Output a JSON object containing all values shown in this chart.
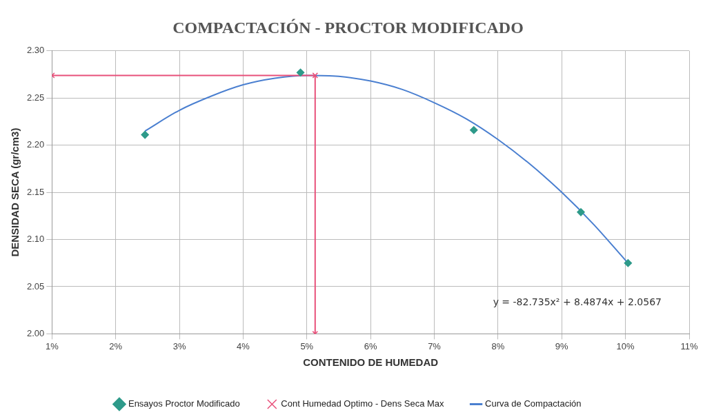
{
  "chart_data": {
    "type": "scatter",
    "title": "COMPACTACIÓN - PROCTOR MODIFICADO",
    "xlabel": "CONTENIDO DE HUMEDAD",
    "ylabel": "DENSIDAD SECA (gr/cm3)",
    "xlim": [
      0.01,
      0.11
    ],
    "xticks": [
      {
        "value": 0.01,
        "label": "1%"
      },
      {
        "value": 0.02,
        "label": "2%"
      },
      {
        "value": 0.03,
        "label": "3%"
      },
      {
        "value": 0.04,
        "label": "4%"
      },
      {
        "value": 0.05,
        "label": "5%"
      },
      {
        "value": 0.06,
        "label": "6%"
      },
      {
        "value": 0.07,
        "label": "7%"
      },
      {
        "value": 0.08,
        "label": "8%"
      },
      {
        "value": 0.09,
        "label": "9%"
      },
      {
        "value": 0.1,
        "label": "10%"
      },
      {
        "value": 0.11,
        "label": "11%"
      }
    ],
    "ylim": [
      2.0,
      2.3
    ],
    "yticks": [
      {
        "value": 2.0,
        "label": "2.00"
      },
      {
        "value": 2.05,
        "label": "2.05"
      },
      {
        "value": 2.1,
        "label": "2.10"
      },
      {
        "value": 2.15,
        "label": "2.15"
      },
      {
        "value": 2.2,
        "label": "2.20"
      },
      {
        "value": 2.25,
        "label": "2.25"
      },
      {
        "value": 2.3,
        "label": "2.30"
      }
    ],
    "grid": true,
    "legend": "bottom",
    "series": [
      {
        "name": "Ensayos Proctor Modificado",
        "marker": "diamond",
        "color": "#2e9a8a",
        "x": [
          0.0246,
          0.049,
          0.0762,
          0.093,
          0.1004
        ],
        "values": [
          2.211,
          2.277,
          2.216,
          2.129,
          2.075
        ]
      },
      {
        "name": "Cont Humedad Optimo - Dens Seca Max",
        "type": "line",
        "marker": "cross",
        "color": "#e8507a",
        "x": [
          0.01,
          0.0513,
          0.0513
        ],
        "values": [
          2.274,
          2.274,
          2.0
        ]
      },
      {
        "name": "Curva de Compactación",
        "type": "line",
        "marker": "none",
        "color": "#4a7fd0",
        "x": [
          0.0246,
          0.03,
          0.035,
          0.04,
          0.045,
          0.05,
          0.055,
          0.06,
          0.065,
          0.07,
          0.075,
          0.08,
          0.085,
          0.09,
          0.095,
          0.1,
          0.1004
        ],
        "values": [
          2.215,
          2.237,
          2.252,
          2.264,
          2.271,
          2.274,
          2.273,
          2.268,
          2.259,
          2.245,
          2.228,
          2.206,
          2.18,
          2.15,
          2.116,
          2.078,
          2.075
        ]
      }
    ],
    "annotations": [
      "y = -82.735x² + 8.4874x + 2.0567"
    ]
  }
}
